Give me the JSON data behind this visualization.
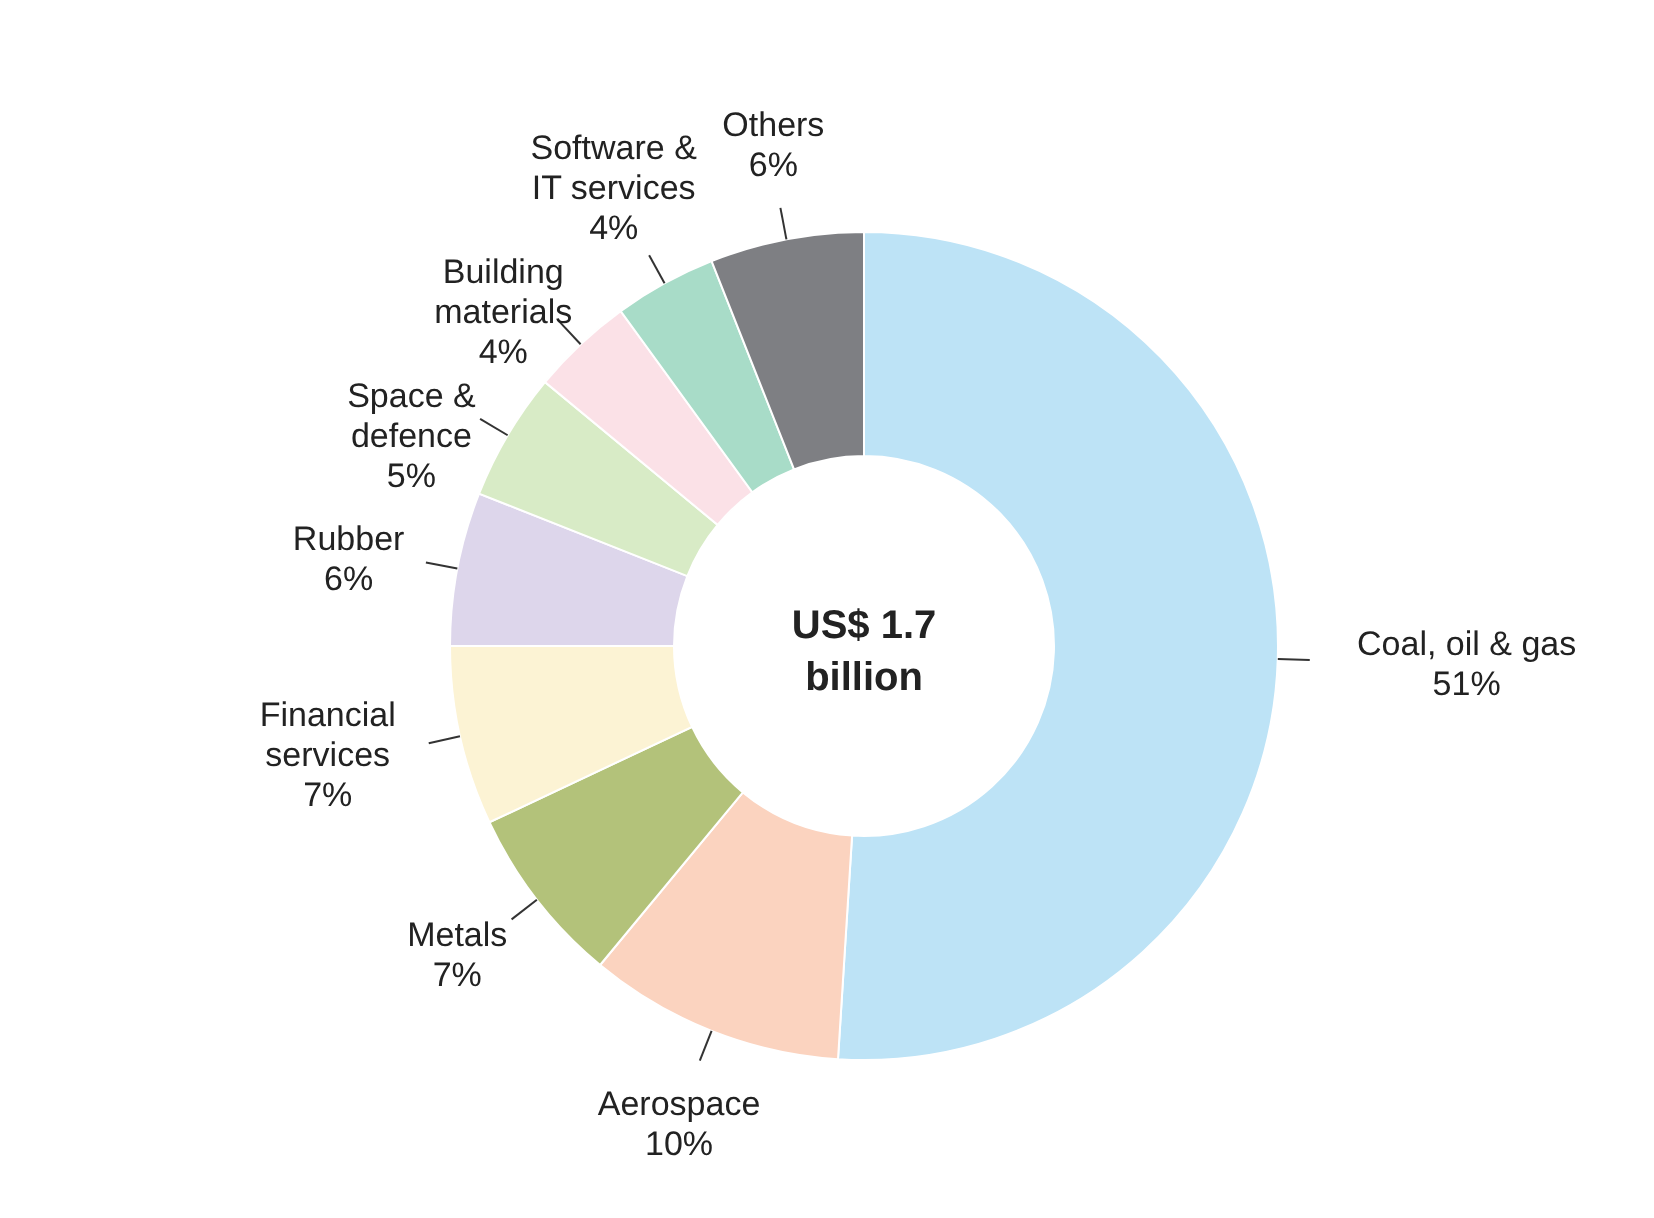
{
  "chart_data": {
    "type": "donut",
    "categories": [
      "Coal, oil & gas",
      "Aerospace",
      "Metals",
      "Financial services",
      "Rubber",
      "Space & defence",
      "Building materials",
      "Software & IT services",
      "Others"
    ],
    "values": [
      51,
      10,
      7,
      7,
      6,
      5,
      4,
      4,
      6
    ],
    "value_labels": [
      "51%",
      "10%",
      "7%",
      "7%",
      "6%",
      "5%",
      "4%",
      "4%",
      "6%"
    ],
    "colors": [
      "#bde3f6",
      "#fbd3bf",
      "#b3c27a",
      "#fcf3d4",
      "#ddd6eb",
      "#d8ebc6",
      "#fbe1e7",
      "#a8dcc8",
      "#7e7f83"
    ],
    "annotations": [
      "US$ 1.7 billion"
    ]
  }
}
